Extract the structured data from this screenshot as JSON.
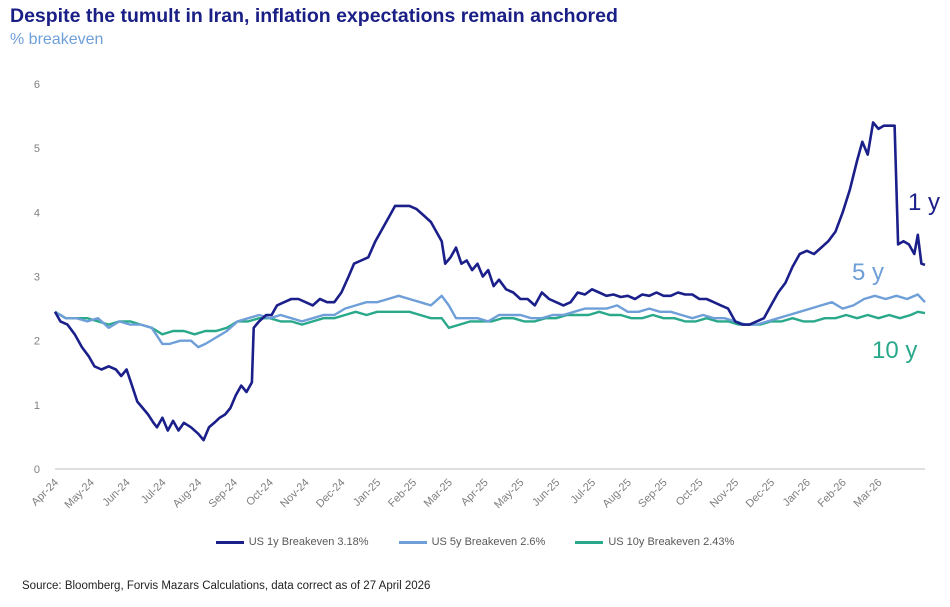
{
  "header": {
    "title": "Despite the tumult in Iran, inflation expectations remain anchored",
    "subtitle": "% breakeven"
  },
  "footer": {
    "source": "Source: Bloomberg, Forvis Mazars Calculations, data correct as of 27 April 2026"
  },
  "chart_data": {
    "type": "line",
    "title": "Despite the tumult in Iran, inflation expectations remain anchored",
    "ylabel": "% breakeven",
    "xlabel": "",
    "ylim": [
      0,
      6
    ],
    "yticks": [
      "0",
      "1",
      "2",
      "3",
      "4",
      "5",
      "6"
    ],
    "categories": [
      "Apr-24",
      "May-24",
      "Jun-24",
      "Jul-24",
      "Aug-24",
      "Sep-24",
      "Oct-24",
      "Nov-24",
      "Dec-24",
      "Jan-25",
      "Feb-25",
      "Mar-25",
      "Apr-25",
      "May-25",
      "Jun-25",
      "Jul-25",
      "Aug-25",
      "Sep-25",
      "Oct-25",
      "Nov-25",
      "Dec-25",
      "Jan-26",
      "Feb-26",
      "Mar-26"
    ],
    "grid": false,
    "legend_position": "bottom",
    "series": [
      {
        "name": "US 1y Breakeven",
        "legend_label": "US 1y Breakeven 3.18%",
        "end_label": "1 y",
        "color": "#1b1f8a",
        "points": [
          [
            0,
            2.45
          ],
          [
            0.15,
            2.3
          ],
          [
            0.35,
            2.25
          ],
          [
            0.55,
            2.1
          ],
          [
            0.75,
            1.9
          ],
          [
            0.95,
            1.75
          ],
          [
            1.1,
            1.6
          ],
          [
            1.3,
            1.55
          ],
          [
            1.5,
            1.6
          ],
          [
            1.7,
            1.55
          ],
          [
            1.85,
            1.45
          ],
          [
            2.0,
            1.55
          ],
          [
            2.15,
            1.3
          ],
          [
            2.3,
            1.05
          ],
          [
            2.45,
            0.95
          ],
          [
            2.6,
            0.85
          ],
          [
            2.75,
            0.72
          ],
          [
            2.85,
            0.65
          ],
          [
            3.0,
            0.8
          ],
          [
            3.15,
            0.6
          ],
          [
            3.3,
            0.75
          ],
          [
            3.45,
            0.6
          ],
          [
            3.6,
            0.72
          ],
          [
            3.8,
            0.65
          ],
          [
            4.0,
            0.55
          ],
          [
            4.15,
            0.45
          ],
          [
            4.3,
            0.65
          ],
          [
            4.45,
            0.72
          ],
          [
            4.6,
            0.8
          ],
          [
            4.75,
            0.85
          ],
          [
            4.9,
            0.95
          ],
          [
            5.05,
            1.15
          ],
          [
            5.2,
            1.3
          ],
          [
            5.35,
            1.2
          ],
          [
            5.5,
            1.35
          ],
          [
            5.55,
            2.2
          ],
          [
            5.7,
            2.3
          ],
          [
            5.9,
            2.4
          ],
          [
            6.05,
            2.4
          ],
          [
            6.2,
            2.55
          ],
          [
            6.4,
            2.6
          ],
          [
            6.6,
            2.65
          ],
          [
            6.8,
            2.65
          ],
          [
            7.0,
            2.6
          ],
          [
            7.2,
            2.55
          ],
          [
            7.4,
            2.65
          ],
          [
            7.6,
            2.6
          ],
          [
            7.8,
            2.6
          ],
          [
            8.0,
            2.75
          ],
          [
            8.2,
            3.0
          ],
          [
            8.35,
            3.2
          ],
          [
            8.55,
            3.25
          ],
          [
            8.75,
            3.3
          ],
          [
            8.95,
            3.55
          ],
          [
            9.15,
            3.75
          ],
          [
            9.35,
            3.95
          ],
          [
            9.5,
            4.1
          ],
          [
            9.7,
            4.1
          ],
          [
            9.9,
            4.1
          ],
          [
            10.1,
            4.05
          ],
          [
            10.3,
            3.95
          ],
          [
            10.5,
            3.85
          ],
          [
            10.65,
            3.7
          ],
          [
            10.8,
            3.55
          ],
          [
            10.9,
            3.2
          ],
          [
            11.05,
            3.3
          ],
          [
            11.2,
            3.45
          ],
          [
            11.35,
            3.2
          ],
          [
            11.5,
            3.25
          ],
          [
            11.65,
            3.1
          ],
          [
            11.8,
            3.2
          ],
          [
            11.95,
            3.0
          ],
          [
            12.1,
            3.1
          ],
          [
            12.25,
            2.85
          ],
          [
            12.4,
            2.95
          ],
          [
            12.6,
            2.8
          ],
          [
            12.8,
            2.75
          ],
          [
            13.0,
            2.65
          ],
          [
            13.2,
            2.65
          ],
          [
            13.4,
            2.55
          ],
          [
            13.6,
            2.75
          ],
          [
            13.8,
            2.65
          ],
          [
            14.0,
            2.6
          ],
          [
            14.2,
            2.55
          ],
          [
            14.4,
            2.6
          ],
          [
            14.6,
            2.75
          ],
          [
            14.8,
            2.72
          ],
          [
            15.0,
            2.8
          ],
          [
            15.2,
            2.75
          ],
          [
            15.4,
            2.7
          ],
          [
            15.6,
            2.72
          ],
          [
            15.8,
            2.68
          ],
          [
            16.0,
            2.7
          ],
          [
            16.2,
            2.65
          ],
          [
            16.4,
            2.72
          ],
          [
            16.6,
            2.7
          ],
          [
            16.8,
            2.75
          ],
          [
            17.0,
            2.7
          ],
          [
            17.2,
            2.7
          ],
          [
            17.4,
            2.75
          ],
          [
            17.6,
            2.72
          ],
          [
            17.8,
            2.72
          ],
          [
            18.0,
            2.65
          ],
          [
            18.2,
            2.65
          ],
          [
            18.4,
            2.6
          ],
          [
            18.6,
            2.55
          ],
          [
            18.8,
            2.5
          ],
          [
            19.0,
            2.3
          ],
          [
            19.2,
            2.25
          ],
          [
            19.4,
            2.25
          ],
          [
            19.6,
            2.3
          ],
          [
            19.8,
            2.35
          ],
          [
            20.0,
            2.55
          ],
          [
            20.2,
            2.75
          ],
          [
            20.4,
            2.9
          ],
          [
            20.6,
            3.15
          ],
          [
            20.8,
            3.35
          ],
          [
            21.0,
            3.4
          ],
          [
            21.2,
            3.35
          ],
          [
            21.4,
            3.45
          ],
          [
            21.6,
            3.55
          ],
          [
            21.8,
            3.7
          ],
          [
            22.0,
            4.0
          ],
          [
            22.2,
            4.35
          ],
          [
            22.4,
            4.8
          ],
          [
            22.55,
            5.1
          ],
          [
            22.7,
            4.9
          ],
          [
            22.85,
            5.4
          ],
          [
            23.0,
            5.3
          ],
          [
            23.15,
            5.35
          ],
          [
            23.3,
            5.35
          ],
          [
            23.45,
            5.35
          ],
          [
            23.55,
            3.5
          ],
          [
            23.7,
            3.55
          ],
          [
            23.85,
            3.5
          ],
          [
            24.0,
            3.35
          ],
          [
            24.1,
            3.65
          ],
          [
            24.2,
            3.2
          ],
          [
            24.3,
            3.18
          ]
        ]
      },
      {
        "name": "US 5y Breakeven",
        "legend_label": "US 5y Breakeven 2.6%",
        "end_label": "5 y",
        "color": "#6f9fd8",
        "points": [
          [
            0,
            2.45
          ],
          [
            0.3,
            2.35
          ],
          [
            0.6,
            2.35
          ],
          [
            0.9,
            2.3
          ],
          [
            1.2,
            2.35
          ],
          [
            1.5,
            2.2
          ],
          [
            1.8,
            2.3
          ],
          [
            2.1,
            2.25
          ],
          [
            2.4,
            2.25
          ],
          [
            2.7,
            2.2
          ],
          [
            3.0,
            1.95
          ],
          [
            3.2,
            1.95
          ],
          [
            3.5,
            2.0
          ],
          [
            3.8,
            2.0
          ],
          [
            4.0,
            1.9
          ],
          [
            4.2,
            1.95
          ],
          [
            4.5,
            2.05
          ],
          [
            4.8,
            2.15
          ],
          [
            5.1,
            2.3
          ],
          [
            5.4,
            2.35
          ],
          [
            5.7,
            2.4
          ],
          [
            6.0,
            2.35
          ],
          [
            6.3,
            2.4
          ],
          [
            6.6,
            2.35
          ],
          [
            6.9,
            2.3
          ],
          [
            7.2,
            2.35
          ],
          [
            7.5,
            2.4
          ],
          [
            7.8,
            2.4
          ],
          [
            8.1,
            2.5
          ],
          [
            8.4,
            2.55
          ],
          [
            8.7,
            2.6
          ],
          [
            9.0,
            2.6
          ],
          [
            9.3,
            2.65
          ],
          [
            9.6,
            2.7
          ],
          [
            9.9,
            2.65
          ],
          [
            10.2,
            2.6
          ],
          [
            10.5,
            2.55
          ],
          [
            10.8,
            2.7
          ],
          [
            11.0,
            2.55
          ],
          [
            11.2,
            2.35
          ],
          [
            11.5,
            2.35
          ],
          [
            11.8,
            2.35
          ],
          [
            12.1,
            2.3
          ],
          [
            12.4,
            2.4
          ],
          [
            12.7,
            2.4
          ],
          [
            13.0,
            2.4
          ],
          [
            13.3,
            2.35
          ],
          [
            13.6,
            2.35
          ],
          [
            13.9,
            2.4
          ],
          [
            14.2,
            2.4
          ],
          [
            14.5,
            2.45
          ],
          [
            14.8,
            2.5
          ],
          [
            15.1,
            2.5
          ],
          [
            15.4,
            2.5
          ],
          [
            15.7,
            2.55
          ],
          [
            16.0,
            2.45
          ],
          [
            16.3,
            2.45
          ],
          [
            16.6,
            2.5
          ],
          [
            16.9,
            2.45
          ],
          [
            17.2,
            2.45
          ],
          [
            17.5,
            2.4
          ],
          [
            17.8,
            2.35
          ],
          [
            18.1,
            2.4
          ],
          [
            18.4,
            2.35
          ],
          [
            18.7,
            2.35
          ],
          [
            19.0,
            2.3
          ],
          [
            19.3,
            2.25
          ],
          [
            19.6,
            2.25
          ],
          [
            19.9,
            2.3
          ],
          [
            20.2,
            2.35
          ],
          [
            20.5,
            2.4
          ],
          [
            20.8,
            2.45
          ],
          [
            21.1,
            2.5
          ],
          [
            21.4,
            2.55
          ],
          [
            21.7,
            2.6
          ],
          [
            22.0,
            2.5
          ],
          [
            22.3,
            2.55
          ],
          [
            22.6,
            2.65
          ],
          [
            22.9,
            2.7
          ],
          [
            23.2,
            2.65
          ],
          [
            23.5,
            2.7
          ],
          [
            23.8,
            2.65
          ],
          [
            24.1,
            2.72
          ],
          [
            24.3,
            2.6
          ]
        ]
      },
      {
        "name": "US 10y Breakeven",
        "legend_label": "US 10y Breakeven 2.43%",
        "end_label": "10 y",
        "color": "#29a88a",
        "points": [
          [
            0,
            2.45
          ],
          [
            0.3,
            2.35
          ],
          [
            0.6,
            2.35
          ],
          [
            0.9,
            2.35
          ],
          [
            1.2,
            2.3
          ],
          [
            1.5,
            2.25
          ],
          [
            1.8,
            2.3
          ],
          [
            2.1,
            2.3
          ],
          [
            2.4,
            2.25
          ],
          [
            2.7,
            2.2
          ],
          [
            3.0,
            2.1
          ],
          [
            3.3,
            2.15
          ],
          [
            3.6,
            2.15
          ],
          [
            3.9,
            2.1
          ],
          [
            4.2,
            2.15
          ],
          [
            4.5,
            2.15
          ],
          [
            4.8,
            2.2
          ],
          [
            5.1,
            2.3
          ],
          [
            5.4,
            2.3
          ],
          [
            5.7,
            2.35
          ],
          [
            6.0,
            2.35
          ],
          [
            6.3,
            2.3
          ],
          [
            6.6,
            2.3
          ],
          [
            6.9,
            2.25
          ],
          [
            7.2,
            2.3
          ],
          [
            7.5,
            2.35
          ],
          [
            7.8,
            2.35
          ],
          [
            8.1,
            2.4
          ],
          [
            8.4,
            2.45
          ],
          [
            8.7,
            2.4
          ],
          [
            9.0,
            2.45
          ],
          [
            9.3,
            2.45
          ],
          [
            9.6,
            2.45
          ],
          [
            9.9,
            2.45
          ],
          [
            10.2,
            2.4
          ],
          [
            10.5,
            2.35
          ],
          [
            10.8,
            2.35
          ],
          [
            11.0,
            2.2
          ],
          [
            11.3,
            2.25
          ],
          [
            11.6,
            2.3
          ],
          [
            11.9,
            2.3
          ],
          [
            12.2,
            2.3
          ],
          [
            12.5,
            2.35
          ],
          [
            12.8,
            2.35
          ],
          [
            13.1,
            2.3
          ],
          [
            13.4,
            2.3
          ],
          [
            13.7,
            2.35
          ],
          [
            14.0,
            2.35
          ],
          [
            14.3,
            2.4
          ],
          [
            14.6,
            2.4
          ],
          [
            14.9,
            2.4
          ],
          [
            15.2,
            2.45
          ],
          [
            15.5,
            2.4
          ],
          [
            15.8,
            2.4
          ],
          [
            16.1,
            2.35
          ],
          [
            16.4,
            2.35
          ],
          [
            16.7,
            2.4
          ],
          [
            17.0,
            2.35
          ],
          [
            17.3,
            2.35
          ],
          [
            17.6,
            2.3
          ],
          [
            17.9,
            2.3
          ],
          [
            18.2,
            2.35
          ],
          [
            18.5,
            2.3
          ],
          [
            18.8,
            2.3
          ],
          [
            19.1,
            2.25
          ],
          [
            19.4,
            2.25
          ],
          [
            19.7,
            2.25
          ],
          [
            20.0,
            2.3
          ],
          [
            20.3,
            2.3
          ],
          [
            20.6,
            2.35
          ],
          [
            20.9,
            2.3
          ],
          [
            21.2,
            2.3
          ],
          [
            21.5,
            2.35
          ],
          [
            21.8,
            2.35
          ],
          [
            22.1,
            2.4
          ],
          [
            22.4,
            2.35
          ],
          [
            22.7,
            2.4
          ],
          [
            23.0,
            2.35
          ],
          [
            23.3,
            2.4
          ],
          [
            23.6,
            2.35
          ],
          [
            23.9,
            2.4
          ],
          [
            24.1,
            2.45
          ],
          [
            24.3,
            2.43
          ]
        ]
      }
    ]
  }
}
